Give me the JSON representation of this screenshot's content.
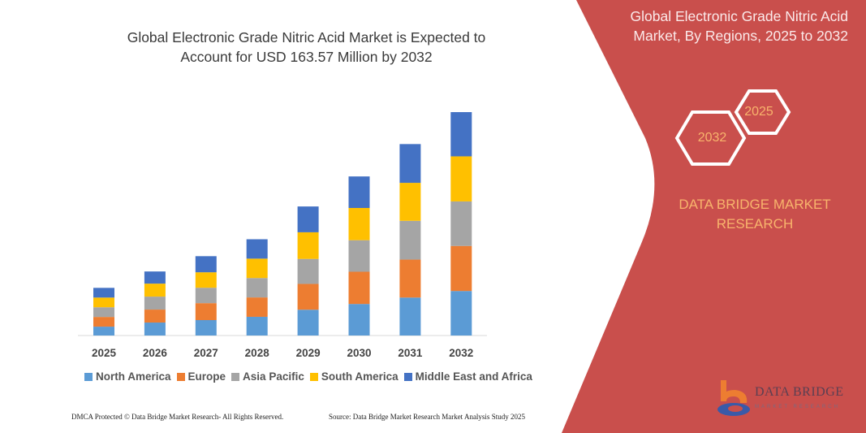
{
  "left_title": "Global Electronic Grade Nitric Acid Market is Expected to Account for USD 163.57 Million by 2032",
  "left_title_lines": [
    "Global Electronic Grade Nitric Acid Market is Expected to",
    "Account for USD 163.57 Million by 2032"
  ],
  "right_title_lines": [
    "Global Electronic Grade Nitric Acid",
    "Market, By Regions, 2025 to 2032"
  ],
  "hexagons": {
    "start": "2025",
    "end": "2032"
  },
  "brand_lines": [
    "DATA BRIDGE MARKET",
    "RESEARCH"
  ],
  "logo": {
    "name": "DATA BRIDGE",
    "tagline": "MARKET RESEARCH"
  },
  "footer": {
    "left": "DMCA Protected © Data Bridge Market Research- All Rights Reserved.",
    "right": "Source: Data Bridge Market Research Market Analysis Study 2025"
  },
  "colors": {
    "panel": "#c94f4c",
    "accent_text": "#f8b46c"
  },
  "chart_data": {
    "type": "bar",
    "stacked": true,
    "title": "",
    "xlabel": "",
    "ylabel": "",
    "unit": "USD Million (estimated, no axis printed)",
    "categories": [
      "2025",
      "2026",
      "2027",
      "2028",
      "2029",
      "2030",
      "2031",
      "2032"
    ],
    "series": [
      {
        "name": "North America",
        "color": "#5b9bd5",
        "values": [
          6.5,
          9.5,
          11.3,
          13.7,
          18.9,
          23.1,
          27.8,
          32.6
        ]
      },
      {
        "name": "Europe",
        "color": "#ed7d31",
        "values": [
          7.1,
          9.5,
          12.4,
          14.2,
          18.9,
          23.6,
          27.8,
          33.0
        ]
      },
      {
        "name": "Asia Pacific",
        "color": "#a5a5a5",
        "values": [
          7.1,
          9.5,
          11.3,
          14.2,
          18.3,
          23.1,
          28.4,
          32.6
        ]
      },
      {
        "name": "South America",
        "color": "#ffc000",
        "values": [
          7.1,
          9.5,
          11.3,
          14.2,
          19.5,
          23.6,
          27.8,
          33.0
        ]
      },
      {
        "name": "Middle East and Africa",
        "color": "#4472c4",
        "values": [
          7.1,
          8.9,
          11.8,
          14.2,
          18.9,
          23.1,
          28.4,
          32.4
        ]
      }
    ],
    "grid": false,
    "legend": "bottom"
  }
}
